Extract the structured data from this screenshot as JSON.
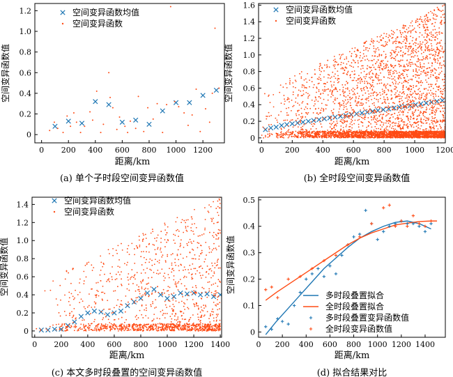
{
  "colors": {
    "blue": "#1f77b4",
    "orange": "#ff4b14",
    "axis": "#000000"
  },
  "chart_data": [
    {
      "type": "scatter",
      "caption": "(a) 单个子时段空间变异函数值",
      "xlabel": "距离/km",
      "ylabel": "空间变异函数值",
      "xlim": [
        -50,
        1360
      ],
      "ylim": [
        -0.08,
        1.27
      ],
      "xticks": [
        0,
        200,
        400,
        600,
        800,
        1000,
        1200
      ],
      "yticks": [
        0,
        0.2,
        0.4,
        0.6,
        0.8,
        1.0,
        1.2
      ],
      "ytick_labels": [
        "0",
        "0.2",
        "0.4",
        "0.6",
        "0.8",
        "1.0",
        "1.2"
      ],
      "legend": {
        "position": "top-left",
        "entries": [
          "空间变异函数均值",
          "空间变异函数"
        ]
      },
      "series": [
        {
          "name": "空间变异函数均值",
          "marker": "x",
          "color": "blue",
          "x": [
            100,
            200,
            300,
            400,
            500,
            600,
            700,
            800,
            900,
            1000,
            1100,
            1200,
            1300
          ],
          "y": [
            0.08,
            0.13,
            0.11,
            0.32,
            0.29,
            0.12,
            0.14,
            0.1,
            0.23,
            0.31,
            0.31,
            0.38,
            0.43
          ]
        },
        {
          "name": "空间变异函数",
          "marker": "dot",
          "color": "orange",
          "x": [
            60,
            95,
            120,
            160,
            190,
            215,
            240,
            260,
            290,
            320,
            360,
            380,
            410,
            440,
            460,
            500,
            510,
            530,
            560,
            580,
            620,
            640,
            660,
            700,
            720,
            760,
            790,
            830,
            860,
            900,
            930,
            960,
            990,
            1020,
            1060,
            1090,
            1120,
            1150,
            1180,
            1220,
            1250,
            1270,
            1290,
            1320
          ],
          "y": [
            0.04,
            0.12,
            0.06,
            0.02,
            0.18,
            0.08,
            0.21,
            0.12,
            0.02,
            0.08,
            0.22,
            0.14,
            0.42,
            0.02,
            0.1,
            0.6,
            0.36,
            0.26,
            0.05,
            0.17,
            0.08,
            0.02,
            0.13,
            0.06,
            0.37,
            0.03,
            0.26,
            0.15,
            0.3,
            0.02,
            0.29,
            1.24,
            0.32,
            0.27,
            0.21,
            0.09,
            0.19,
            0.44,
            0.03,
            0.25,
            0.12,
            0.4,
            1.03,
            0.45
          ]
        }
      ]
    },
    {
      "type": "scatter",
      "caption": "(b) 全时段空间变异函数值",
      "xlabel": "距离/km",
      "ylabel": "空间变异函数值",
      "xlim": [
        -20,
        1200
      ],
      "ylim": [
        -0.06,
        1.62
      ],
      "xticks": [
        0,
        200,
        400,
        600,
        800,
        1000,
        1200
      ],
      "yticks": [
        0,
        0.2,
        0.4,
        0.6,
        0.8,
        1.0,
        1.2,
        1.4,
        1.6
      ],
      "ytick_labels": [
        "0",
        "0.2",
        "0.4",
        "0.6",
        "0.8",
        "1.0",
        "1.2",
        "1.4",
        "1.6"
      ],
      "legend": {
        "position": "top-left",
        "entries": [
          "空间变异函数均值",
          "空间变异函数"
        ]
      },
      "series": [
        {
          "name": "空间变异函数均值",
          "marker": "x",
          "color": "blue",
          "x": [
            25,
            60,
            95,
            130,
            165,
            200,
            235,
            270,
            305,
            340,
            375,
            410,
            445,
            480,
            515,
            550,
            585,
            620,
            655,
            690,
            725,
            760,
            795,
            830,
            865,
            900,
            935,
            970,
            1005,
            1040,
            1075,
            1110,
            1145,
            1180
          ],
          "y": [
            0.1,
            0.12,
            0.13,
            0.15,
            0.16,
            0.17,
            0.18,
            0.19,
            0.2,
            0.21,
            0.22,
            0.23,
            0.24,
            0.25,
            0.26,
            0.27,
            0.28,
            0.29,
            0.3,
            0.31,
            0.32,
            0.33,
            0.34,
            0.35,
            0.36,
            0.37,
            0.38,
            0.39,
            0.4,
            0.41,
            0.42,
            0.43,
            0.44,
            0.45
          ]
        },
        {
          "name": "空间变异函数",
          "marker": "dot",
          "color": "orange",
          "generated": {
            "count": 4200,
            "seed": 7,
            "xmax": 1200,
            "ymax": 1.62,
            "density_rises_with_x": true
          }
        }
      ]
    },
    {
      "type": "scatter",
      "caption": "(c) 本文多时段叠置的空间变异函数值",
      "xlabel": "距离/km",
      "ylabel": "空间变异函数值",
      "xlim": [
        -20,
        1410
      ],
      "ylim": [
        -0.07,
        1.48
      ],
      "xticks": [
        0,
        200,
        400,
        600,
        800,
        1000,
        1200,
        1400
      ],
      "yticks": [
        0,
        0.2,
        0.4,
        0.6,
        0.8,
        1.0,
        1.2,
        1.4
      ],
      "ytick_labels": [
        "0",
        "0.2",
        "0.4",
        "0.6",
        "0.8",
        "1.0",
        "1.2",
        "1.4"
      ],
      "legend": {
        "position": "top-left",
        "entries": [
          "空间变异函数均值",
          "空间变异函数"
        ]
      },
      "series": [
        {
          "name": "空间变异函数均值",
          "marker": "x",
          "color": "blue",
          "x": [
            50,
            100,
            150,
            200,
            250,
            300,
            350,
            400,
            450,
            500,
            550,
            600,
            650,
            700,
            750,
            800,
            850,
            900,
            950,
            1000,
            1050,
            1100,
            1150,
            1200,
            1250,
            1300,
            1350,
            1400
          ],
          "y": [
            0.01,
            0.01,
            0.02,
            0.02,
            0.06,
            0.1,
            0.16,
            0.2,
            0.22,
            0.21,
            0.18,
            0.2,
            0.22,
            0.28,
            0.32,
            0.36,
            0.42,
            0.46,
            0.4,
            0.36,
            0.38,
            0.42,
            0.41,
            0.42,
            0.4,
            0.41,
            0.38,
            0.4
          ]
        },
        {
          "name": "空间变异函数",
          "marker": "dot",
          "color": "orange",
          "generated": {
            "count": 1500,
            "seed": 11,
            "xmax": 1400,
            "ymax": 1.48,
            "density_rises_with_x": true
          }
        }
      ]
    },
    {
      "type": "line",
      "caption": "(d) 拟合结果对比",
      "xlabel": "距离/km",
      "ylabel": "空间变异函数值",
      "xlim": [
        0,
        1570
      ],
      "ylim": [
        -0.02,
        0.51
      ],
      "xticks": [
        0,
        200,
        400,
        600,
        800,
        1000,
        1200,
        1400
      ],
      "yticks": [
        0,
        0.1,
        0.2,
        0.3,
        0.4,
        0.5
      ],
      "ytick_labels": [
        "0",
        "0.1",
        "0.2",
        "0.3",
        "0.4",
        "0.5"
      ],
      "legend": {
        "position": "bottom-center",
        "entries": [
          "多时段叠置拟合",
          "全时段叠置拟合",
          "多时段叠置变异函数值",
          "全时段变异函数值"
        ]
      },
      "series": [
        {
          "name": "多时段叠置拟合",
          "kind": "line",
          "color": "blue",
          "x": [
            60,
            150,
            250,
            350,
            450,
            550,
            650,
            750,
            850,
            950,
            1050,
            1150,
            1250,
            1350,
            1450
          ],
          "y": [
            -0.01,
            0.04,
            0.09,
            0.14,
            0.19,
            0.24,
            0.28,
            0.32,
            0.355,
            0.38,
            0.4,
            0.415,
            0.42,
            0.41,
            0.39
          ]
        },
        {
          "name": "全时段叠置拟合",
          "kind": "line",
          "color": "orange",
          "x": [
            60,
            150,
            250,
            350,
            450,
            550,
            650,
            750,
            850,
            950,
            1050,
            1150,
            1250,
            1350,
            1450,
            1500
          ],
          "y": [
            0.12,
            0.15,
            0.18,
            0.21,
            0.24,
            0.27,
            0.3,
            0.33,
            0.355,
            0.375,
            0.39,
            0.405,
            0.412,
            0.418,
            0.42,
            0.42
          ]
        },
        {
          "name": "多时段叠置变异函数值",
          "kind": "points",
          "color": "blue",
          "x": [
            60,
            110,
            160,
            200,
            250,
            300,
            350,
            400,
            450,
            500,
            550,
            600,
            650,
            700,
            750,
            800,
            850,
            900,
            950,
            1000,
            1050,
            1100,
            1150,
            1200,
            1250,
            1300,
            1350,
            1400,
            1450
          ],
          "y": [
            0.02,
            0.01,
            0.05,
            0.04,
            0.03,
            0.1,
            0.15,
            0.2,
            0.22,
            0.24,
            0.21,
            0.25,
            0.22,
            0.29,
            0.33,
            0.36,
            0.37,
            0.46,
            0.41,
            0.35,
            0.38,
            0.4,
            0.41,
            0.42,
            0.41,
            0.41,
            0.4,
            0.38,
            0.41
          ]
        },
        {
          "name": "全时段变异函数值",
          "kind": "points",
          "color": "orange",
          "x": [
            60,
            110,
            160,
            250,
            350,
            450,
            550,
            650,
            750,
            850,
            950,
            1050,
            1100,
            1150,
            1200,
            1250,
            1300,
            1350,
            1400,
            1450
          ],
          "y": [
            0.16,
            0.17,
            0.13,
            0.2,
            0.21,
            0.24,
            0.27,
            0.29,
            0.33,
            0.36,
            0.41,
            0.47,
            0.48,
            0.4,
            0.42,
            0.4,
            0.44,
            0.41,
            0.4,
            0.42
          ]
        }
      ]
    }
  ]
}
